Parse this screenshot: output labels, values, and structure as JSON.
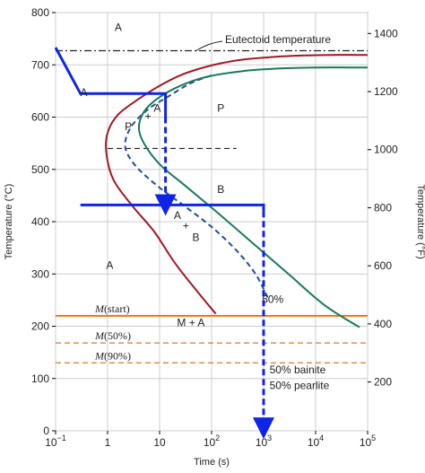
{
  "chart_data": {
    "type": "line",
    "xlabel": "Time (s)",
    "ylabel": "Temperature (°C)",
    "y2label": "Temperature (°F)",
    "xscale": "log",
    "xlim": [
      0.1,
      100000
    ],
    "ylim": [
      0,
      800
    ],
    "y2lim": [
      32,
      1472
    ],
    "x_ticks": [
      {
        "value": 0.1,
        "base": "10",
        "exp": "−1"
      },
      {
        "value": 1,
        "base": "1",
        "exp": ""
      },
      {
        "value": 10,
        "base": "10",
        "exp": ""
      },
      {
        "value": 100,
        "base": "10",
        "exp": "2"
      },
      {
        "value": 1000,
        "base": "10",
        "exp": "3"
      },
      {
        "value": 10000,
        "base": "10",
        "exp": "4"
      },
      {
        "value": 100000,
        "base": "10",
        "exp": "5"
      }
    ],
    "y_ticks": [
      "0",
      "100",
      "200",
      "300",
      "400",
      "500",
      "600",
      "700",
      "800"
    ],
    "y2_ticks": [
      "200",
      "400",
      "600",
      "800",
      "1000",
      "1200",
      "1400"
    ],
    "grid": true,
    "series": [
      {
        "name": "start",
        "color": "#a01822",
        "style": "solid",
        "x": [
          120,
          60,
          20,
          8,
          3,
          1.3,
          0.95,
          1.0,
          1.6,
          4,
          10,
          25,
          60,
          150,
          400,
          1500,
          6000,
          20000,
          60000,
          100000
        ],
        "y": [
          224,
          260,
          320,
          380,
          430,
          480,
          530,
          570,
          605,
          635,
          660,
          680,
          693,
          703,
          710,
          715,
          718,
          719,
          719,
          719
        ]
      },
      {
        "name": "50%",
        "color": "#1f4f9a",
        "style": "dashed",
        "x": [
          1200,
          700,
          300,
          100,
          30,
          10,
          4,
          2.4,
          2.2,
          3,
          6,
          15,
          40,
          100
        ],
        "y": [
          255,
          300,
          345,
          390,
          430,
          465,
          500,
          530,
          555,
          585,
          615,
          640,
          665,
          680
        ]
      },
      {
        "name": "finish",
        "color": "#1a7a58",
        "style": "solid",
        "x": [
          70000,
          15000,
          3000,
          600,
          120,
          30,
          10,
          5,
          4,
          5,
          9,
          25,
          80,
          400,
          2000,
          10000,
          50000,
          100000
        ],
        "y": [
          198,
          240,
          300,
          360,
          420,
          470,
          510,
          550,
          580,
          610,
          635,
          660,
          677,
          688,
          693,
          695,
          695,
          695
        ]
      },
      {
        "name": "cooling path",
        "color": "#1024e6",
        "style": "solid",
        "x": [
          0.1,
          0.3,
          13,
          13
        ],
        "y": [
          733,
          645,
          645,
          600
        ]
      },
      {
        "name": "cooling path",
        "color": "#1024e6",
        "style": "dashed",
        "x": [
          13,
          13
        ],
        "y": [
          600,
          432
        ]
      },
      {
        "name": "cooling path",
        "color": "#1024e6",
        "style": "solid",
        "x": [
          0.3,
          1000,
          1000
        ],
        "y": [
          432,
          432,
          420
        ]
      },
      {
        "name": "cooling path",
        "color": "#1024e6",
        "style": "dashed",
        "x": [
          1000,
          1000
        ],
        "y": [
          420,
          5
        ]
      }
    ],
    "reference_lines": [
      {
        "label": "Eutectoid temperature",
        "y": 727,
        "color": "#222222",
        "style": "dashdot"
      },
      {
        "label": "M(start)",
        "y": 220,
        "color": "#e07820",
        "style": "solid"
      },
      {
        "label": "M(50%)",
        "y": 168,
        "color": "#e07820",
        "style": "dashed"
      },
      {
        "label": "M(90%)",
        "y": 130,
        "color": "#e07820",
        "style": "dashed"
      },
      {
        "label": "",
        "y": 540,
        "x_from": 1,
        "x_to": 300,
        "color": "#222222",
        "style": "dashed"
      }
    ],
    "annotations": [
      {
        "text": "A",
        "x": 0.35,
        "y": 640
      },
      {
        "text": "A",
        "x": 1.6,
        "y": 765
      },
      {
        "text": "P",
        "x": 150,
        "y": 610
      },
      {
        "text": "+",
        "x": 6,
        "y": 595
      },
      {
        "text": "A",
        "x": 9,
        "y": 610
      },
      {
        "text": "P",
        "x": 2.5,
        "y": 575
      },
      {
        "text": "B",
        "x": 150,
        "y": 455
      },
      {
        "text": "A",
        "x": 22,
        "y": 405
      },
      {
        "text": "+",
        "x": 32,
        "y": 385
      },
      {
        "text": "B",
        "x": 50,
        "y": 363
      },
      {
        "text": "A",
        "x": 1.1,
        "y": 310
      },
      {
        "text": "M + A",
        "x": 40,
        "y": 200
      },
      {
        "text": "50%",
        "x": 1500,
        "y": 245
      },
      {
        "text": "50% bainite",
        "x": 1300,
        "y": 110
      },
      {
        "text": "50% pearlite",
        "x": 1300,
        "y": 80
      }
    ]
  }
}
